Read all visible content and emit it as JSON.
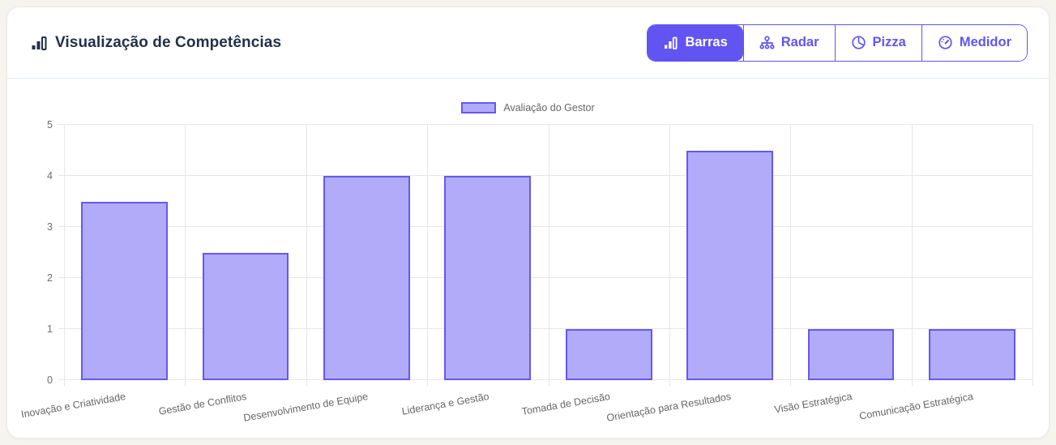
{
  "header": {
    "title": "Visualização de Competências",
    "accent_color": "#6254f0",
    "tabs": [
      {
        "label": "Barras",
        "icon": "bar-chart-icon",
        "active": true
      },
      {
        "label": "Radar",
        "icon": "sitemap-icon",
        "active": false
      },
      {
        "label": "Pizza",
        "icon": "pie-chart-icon",
        "active": false
      },
      {
        "label": "Medidor",
        "icon": "gauge-icon",
        "active": false
      }
    ]
  },
  "legend": {
    "label": "Avaliação do Gestor",
    "swatch_fill": "#b1abfa",
    "swatch_border": "#6558f5"
  },
  "chart_data": {
    "type": "bar",
    "categories": [
      "Inovação e Criatividade",
      "Gestão de Conflitos",
      "Desenvolvimento de Equipe",
      "Liderança e Gestão",
      "Tomada de Decisão",
      "Orientação para Resultados",
      "Visão Estratégica",
      "Comunicação Estratégica"
    ],
    "series": [
      {
        "name": "Avaliação do Gestor",
        "values": [
          3.5,
          2.5,
          4,
          4,
          1,
          4.5,
          1,
          1
        ]
      }
    ],
    "title": "",
    "xlabel": "",
    "ylabel": "",
    "ylim": [
      0,
      5
    ],
    "yticks": [
      0,
      1,
      2,
      3,
      4,
      5
    ],
    "grid": true,
    "legend_position": "top",
    "bar_fill": "#b1abfa",
    "bar_border": "#6558f5",
    "bar_width_fraction": 0.715,
    "xlabel_rotation_deg": -10
  }
}
